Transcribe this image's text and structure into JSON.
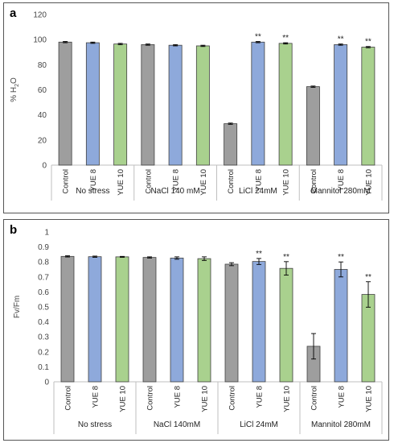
{
  "colors": {
    "Control": "#9e9e9e",
    "YUE 8": "#8ea9db",
    "YUE 10": "#a9d18e",
    "axis": "#bfbfbf",
    "error_bar": "#000000"
  },
  "chart_data": [
    {
      "panel_label": "a",
      "type": "bar",
      "ylabel": "% H",
      "ylabel_sub": "2",
      "ylabel_tail": "O",
      "ylim": [
        0,
        120
      ],
      "yticks": [
        0,
        20,
        40,
        60,
        80,
        100,
        120
      ],
      "ytick_labels": [
        "0",
        "20",
        "40",
        "60",
        "80",
        "100",
        "120"
      ],
      "grid": false,
      "categories": [
        "Control",
        "YUE 8",
        "YUE 10"
      ],
      "groups": [
        {
          "name": "No stress",
          "values": [
            98,
            97.5,
            96.5
          ],
          "errors": [
            0.5,
            0.5,
            0.5
          ],
          "stars": [
            "",
            "",
            ""
          ]
        },
        {
          "name": "NaCl 140 mM",
          "values": [
            96,
            95.5,
            95
          ],
          "errors": [
            0.5,
            0.5,
            0.5
          ],
          "stars": [
            "",
            "",
            ""
          ]
        },
        {
          "name": "LiCl 24mM",
          "values": [
            33,
            98,
            97
          ],
          "errors": [
            0.5,
            0.5,
            0.5
          ],
          "stars": [
            "",
            "**",
            "**"
          ]
        },
        {
          "name": "Mannitol 280mM",
          "values": [
            62.5,
            96,
            94
          ],
          "errors": [
            0.5,
            0.5,
            0.5
          ],
          "stars": [
            "",
            "**",
            "**"
          ]
        }
      ]
    },
    {
      "panel_label": "b",
      "type": "bar",
      "ylabel": "Fv/Fm",
      "ylim": [
        0,
        1
      ],
      "yticks": [
        0,
        0.1,
        0.2,
        0.3,
        0.4,
        0.5,
        0.6,
        0.7,
        0.8,
        0.9,
        1
      ],
      "ytick_labels": [
        "0",
        "0.1",
        "0.2",
        "0.3",
        "0.4",
        "0.5",
        "0.6",
        "0.7",
        "0.8",
        "0.9",
        "1"
      ],
      "grid": false,
      "categories": [
        "Control",
        "YUE 8",
        "YUE 10"
      ],
      "groups": [
        {
          "name": "No stress",
          "values": [
            0.837,
            0.835,
            0.834
          ],
          "errors": [
            0.004,
            0.004,
            0.003
          ],
          "stars": [
            "",
            "",
            ""
          ]
        },
        {
          "name": "NaCl 140mM",
          "values": [
            0.83,
            0.826,
            0.822
          ],
          "errors": [
            0.004,
            0.008,
            0.012
          ],
          "stars": [
            "",
            "",
            ""
          ]
        },
        {
          "name": "LiCl 24mM",
          "values": [
            0.785,
            0.803,
            0.757
          ],
          "errors": [
            0.01,
            0.02,
            0.045
          ],
          "stars": [
            "",
            "**",
            "**"
          ]
        },
        {
          "name": "Mannitol 280mM",
          "values": [
            0.237,
            0.75,
            0.583
          ],
          "errors": [
            0.085,
            0.05,
            0.085
          ],
          "stars": [
            "",
            "**",
            "**"
          ]
        }
      ]
    }
  ]
}
